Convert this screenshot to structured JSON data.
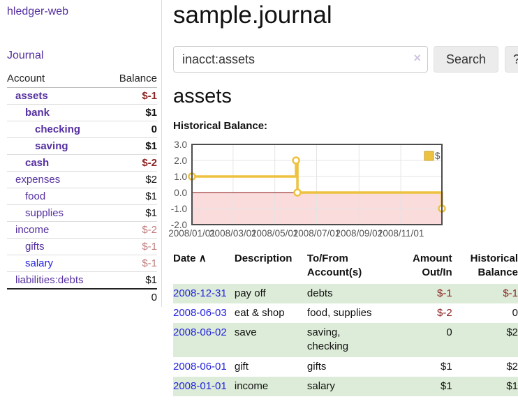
{
  "colors": {
    "purple": "#5530a0",
    "blue": "#2323dd",
    "red": "#8e2424",
    "rose": "#bf7b7b",
    "row-green": "#ddecd8",
    "gold": "#edc240",
    "gold-dark": "#c9a227",
    "chart-border": "#4c4c4c",
    "grid-line": "#e4e4e4",
    "axis-text": "#545454"
  },
  "sidebar": {
    "brand": "hledger-web",
    "journal_link": "Journal",
    "accounts_table": {
      "headers": [
        "Account",
        "Balance"
      ],
      "rows": [
        {
          "label": "assets",
          "name_class": "d1 b",
          "balance": "$-1",
          "balance_class": "b red"
        },
        {
          "label": "bank",
          "name_class": "d2 b",
          "balance": "$1",
          "balance_class": "b"
        },
        {
          "label": "checking",
          "name_class": "d3 b",
          "balance": "0",
          "balance_class": "b"
        },
        {
          "label": "saving",
          "name_class": "d3 b",
          "balance": "$1",
          "balance_class": "b"
        },
        {
          "label": "cash",
          "name_class": "d2 b",
          "balance": "$-2",
          "balance_class": "b red"
        },
        {
          "label": "expenses",
          "name_class": "d1",
          "balance": "$2",
          "balance_class": ""
        },
        {
          "label": "food",
          "name_class": "d2",
          "balance": "$1",
          "balance_class": ""
        },
        {
          "label": "supplies",
          "name_class": "d2",
          "balance": "$1",
          "balance_class": ""
        },
        {
          "label": "income",
          "name_class": "d1",
          "balance": "$-2",
          "balance_class": "rose"
        },
        {
          "label": "gifts",
          "name_class": "d2",
          "balance": "$-1",
          "balance_class": "rose"
        },
        {
          "label": "salary",
          "name_class": "d2 blue",
          "balance": "$-1",
          "balance_class": "rose"
        },
        {
          "label": "liabilities:debts",
          "name_class": "d1",
          "balance": "$1",
          "balance_class": ""
        }
      ],
      "total": "0"
    }
  },
  "header": {
    "title": "sample.journal"
  },
  "search": {
    "value": "inacct:assets",
    "button_label": "Search",
    "help_label": "?"
  },
  "icons": {
    "clear": "×",
    "sort_ascending": "∧"
  },
  "account_page": {
    "title": "assets",
    "chart_label": "Historical Balance:"
  },
  "chart_data": {
    "type": "line",
    "step": true,
    "title": "Historical Balance",
    "series": [
      {
        "name": "$",
        "color": "#edc240",
        "points": [
          [
            "2008-01-01",
            1
          ],
          [
            "2008-06-01",
            2
          ],
          [
            "2008-06-03",
            0
          ],
          [
            "2008-12-31",
            -1
          ]
        ]
      }
    ],
    "xlim": [
      "2008-01-01",
      "2008-12-31"
    ],
    "ylim": [
      -2,
      3
    ],
    "y_ticks": [
      {
        "v": 3,
        "label": "3.0"
      },
      {
        "v": 2,
        "label": "2.0"
      },
      {
        "v": 1,
        "label": "1.0"
      },
      {
        "v": 0,
        "label": "0.0"
      },
      {
        "v": -1,
        "label": "-1.0"
      },
      {
        "v": -2,
        "label": "-2.0"
      }
    ],
    "x_ticks": [
      {
        "date": "2008-01-01",
        "label": "2008/01/01"
      },
      {
        "date": "2008-03-01",
        "label": "2008/03/01"
      },
      {
        "date": "2008-05-01",
        "label": "2008/05/01"
      },
      {
        "date": "2008-07-01",
        "label": "2008/07/01"
      },
      {
        "date": "2008-09-01",
        "label": "2008/09/01"
      },
      {
        "date": "2008-11-01",
        "label": "2008/11/01"
      }
    ],
    "grid": true,
    "legend_position": "top-right",
    "below_zero_fill": "#fadcdc",
    "zero_line_color": "#871111"
  },
  "register": {
    "headers": [
      "Date",
      "Description",
      "To/From Account(s)",
      "Amount Out/In",
      "Historical Balance"
    ],
    "rows": [
      {
        "date": "2008-12-31",
        "description": "pay off",
        "accounts": "debts",
        "amount": "$-1",
        "amount_class": "neg",
        "balance": "$-1",
        "balance_class": "neg",
        "row_class": "green"
      },
      {
        "date": "2008-06-03",
        "description": "eat & shop",
        "accounts": "food, supplies",
        "amount": "$-2",
        "amount_class": "neg",
        "balance": "0",
        "balance_class": "",
        "row_class": ""
      },
      {
        "date": "2008-06-02",
        "description": "save",
        "accounts": "saving, checking",
        "amount": "0",
        "amount_class": "",
        "balance": "$2",
        "balance_class": "",
        "row_class": "green"
      },
      {
        "date": "2008-06-01",
        "description": "gift",
        "accounts": "gifts",
        "amount": "$1",
        "amount_class": "",
        "balance": "$2",
        "balance_class": "",
        "row_class": ""
      },
      {
        "date": "2008-01-01",
        "description": "income",
        "accounts": "salary",
        "amount": "$1",
        "amount_class": "",
        "balance": "$1",
        "balance_class": "",
        "row_class": "green"
      }
    ]
  }
}
